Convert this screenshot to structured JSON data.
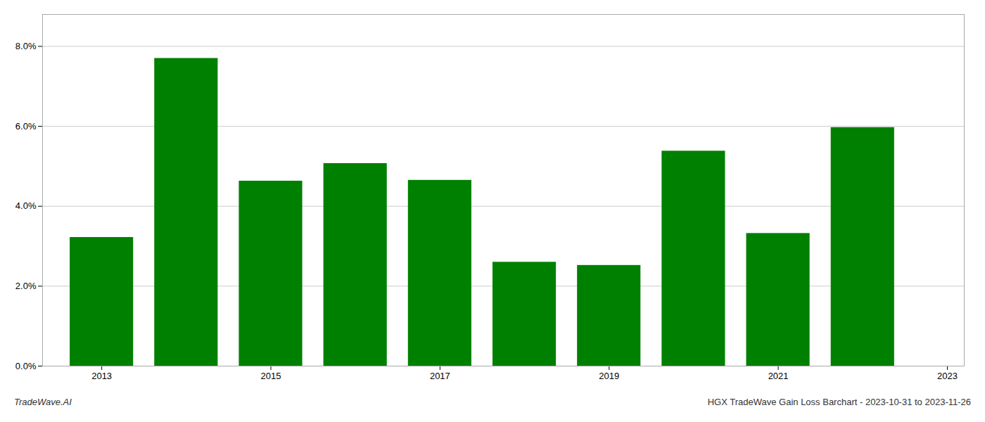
{
  "chart_data": {
    "type": "bar",
    "x": [
      2013,
      2014,
      2015,
      2016,
      2017,
      2018,
      2019,
      2020,
      2021,
      2022
    ],
    "values": [
      0.0322,
      0.077,
      0.0463,
      0.0507,
      0.0465,
      0.026,
      0.0252,
      0.0538,
      0.0332,
      0.0597
    ],
    "color": "#008000",
    "xlim": [
      2012.3,
      2023.2
    ],
    "xticks": [
      2013,
      2015,
      2017,
      2019,
      2021,
      2023
    ],
    "ylim": [
      0.0,
      0.088
    ],
    "yticks": [
      {
        "value": 0.0,
        "label": "0.0%"
      },
      {
        "value": 0.02,
        "label": "2.0%"
      },
      {
        "value": 0.04,
        "label": "4.0%"
      },
      {
        "value": 0.06,
        "label": "6.0%"
      },
      {
        "value": 0.08,
        "label": "8.0%"
      }
    ],
    "grid": true,
    "annotations": [
      "TradeWave.AI",
      "HGX TradeWave Gain Loss Barchart - 2023-10-31 to 2023-11-26"
    ]
  }
}
